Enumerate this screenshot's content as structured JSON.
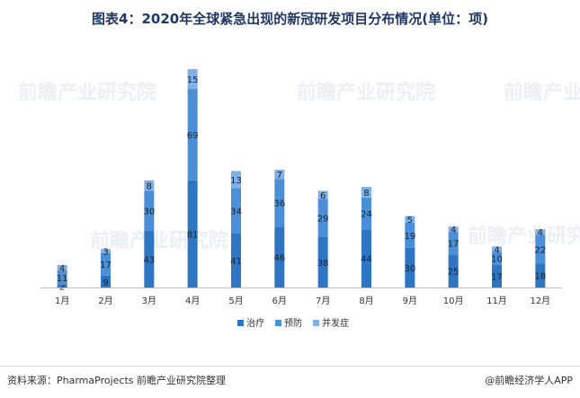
{
  "title": "图表4：2020年全球紧急出现的新冠研发项目分布情况(单位：项)",
  "source": "资料来源：PharmaProjects 前瞻产业研究院整理",
  "brand": "@前瞻经济学人APP",
  "watermark": "前瞻产业研究院",
  "colors": {
    "treatment": "#2e75c4",
    "prevention": "#4a8fd8",
    "complication": "#7fb0e6",
    "axis": "#bfbfbf"
  },
  "chart_data": {
    "type": "bar",
    "stacked": true,
    "categories": [
      "1月",
      "2月",
      "3月",
      "4月",
      "5月",
      "6月",
      "7月",
      "8月",
      "9月",
      "10月",
      "11月",
      "12月"
    ],
    "series": [
      {
        "name": "治疗",
        "values": [
          2,
          9,
          43,
          81,
          41,
          46,
          38,
          44,
          30,
          25,
          17,
          18
        ]
      },
      {
        "name": "预防",
        "values": [
          11,
          17,
          30,
          69,
          34,
          36,
          29,
          24,
          19,
          17,
          10,
          22
        ]
      },
      {
        "name": "并发症",
        "values": [
          4,
          3,
          8,
          15,
          13,
          7,
          6,
          8,
          5,
          4,
          4,
          4
        ]
      }
    ],
    "ylim": [
      0,
      167
    ],
    "legend_position": "bottom",
    "grid": false
  }
}
